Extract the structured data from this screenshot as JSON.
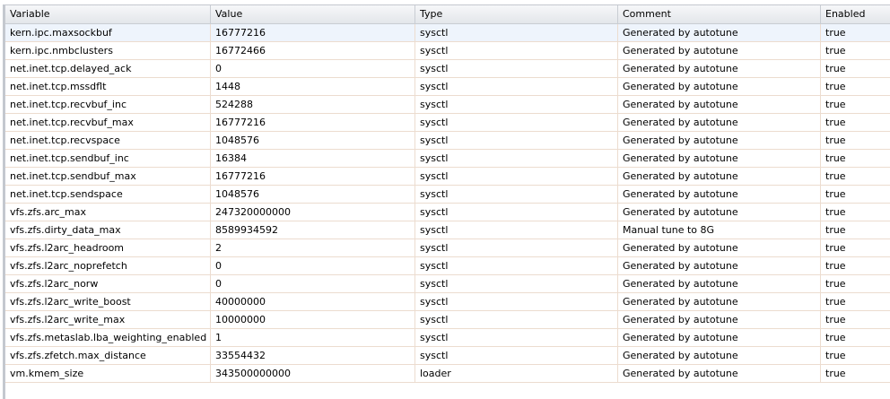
{
  "columns": [
    "Variable",
    "Value",
    "Type",
    "Comment",
    "Enabled"
  ],
  "rows": [
    [
      "kern.ipc.maxsockbuf",
      "16777216",
      "sysctl",
      "Generated by autotune",
      "true"
    ],
    [
      "kern.ipc.nmbclusters",
      "16772466",
      "sysctl",
      "Generated by autotune",
      "true"
    ],
    [
      "net.inet.tcp.delayed_ack",
      "0",
      "sysctl",
      "Generated by autotune",
      "true"
    ],
    [
      "net.inet.tcp.mssdflt",
      "1448",
      "sysctl",
      "Generated by autotune",
      "true"
    ],
    [
      "net.inet.tcp.recvbuf_inc",
      "524288",
      "sysctl",
      "Generated by autotune",
      "true"
    ],
    [
      "net.inet.tcp.recvbuf_max",
      "16777216",
      "sysctl",
      "Generated by autotune",
      "true"
    ],
    [
      "net.inet.tcp.recvspace",
      "1048576",
      "sysctl",
      "Generated by autotune",
      "true"
    ],
    [
      "net.inet.tcp.sendbuf_inc",
      "16384",
      "sysctl",
      "Generated by autotune",
      "true"
    ],
    [
      "net.inet.tcp.sendbuf_max",
      "16777216",
      "sysctl",
      "Generated by autotune",
      "true"
    ],
    [
      "net.inet.tcp.sendspace",
      "1048576",
      "sysctl",
      "Generated by autotune",
      "true"
    ],
    [
      "vfs.zfs.arc_max",
      "247320000000",
      "sysctl",
      "Generated by autotune",
      "true"
    ],
    [
      "vfs.zfs.dirty_data_max",
      "8589934592",
      "sysctl",
      "Manual tune to 8G",
      "true"
    ],
    [
      "vfs.zfs.l2arc_headroom",
      "2",
      "sysctl",
      "Generated by autotune",
      "true"
    ],
    [
      "vfs.zfs.l2arc_noprefetch",
      "0",
      "sysctl",
      "Generated by autotune",
      "true"
    ],
    [
      "vfs.zfs.l2arc_norw",
      "0",
      "sysctl",
      "Generated by autotune",
      "true"
    ],
    [
      "vfs.zfs.l2arc_write_boost",
      "40000000",
      "sysctl",
      "Generated by autotune",
      "true"
    ],
    [
      "vfs.zfs.l2arc_write_max",
      "10000000",
      "sysctl",
      "Generated by autotune",
      "true"
    ],
    [
      "vfs.zfs.metaslab.lba_weighting_enabled",
      "1",
      "sysctl",
      "Generated by autotune",
      "true"
    ],
    [
      "vfs.zfs.zfetch.max_distance",
      "33554432",
      "sysctl",
      "Generated by autotune",
      "true"
    ],
    [
      "vm.kmem_size",
      "343500000000",
      "loader",
      "Generated by autotune",
      "true"
    ]
  ],
  "selected_row": 0
}
